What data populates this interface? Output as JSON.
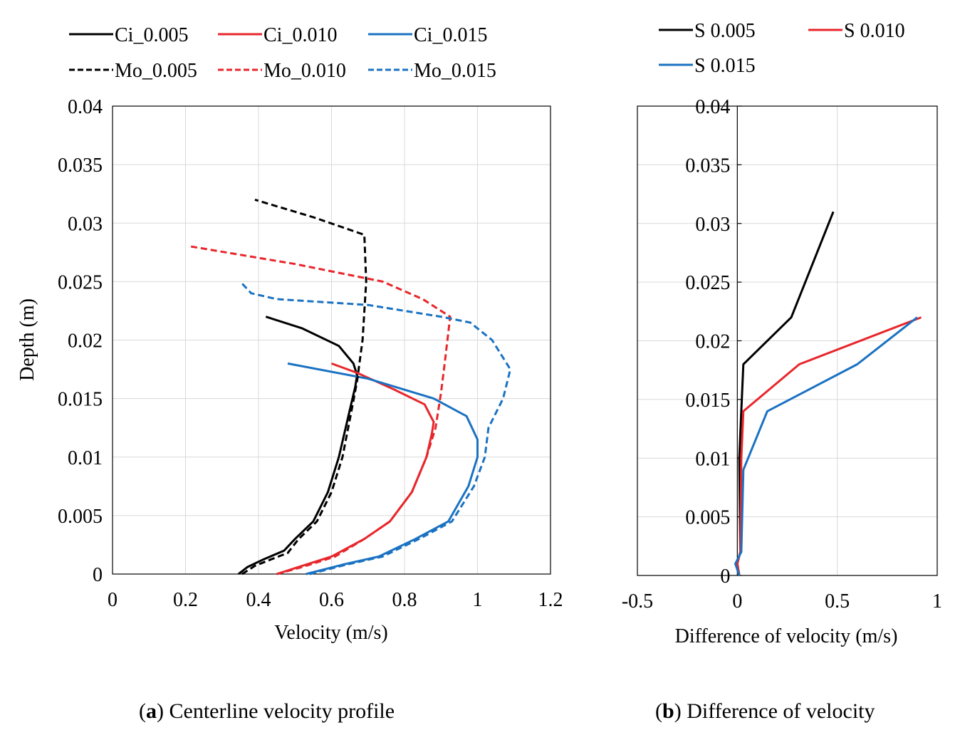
{
  "chart_data": [
    {
      "type": "line",
      "panel_label": "a",
      "caption": "Centerline velocity profile",
      "xlabel": "Velocity (m/s)",
      "ylabel": "Depth (m)",
      "xlim": [
        0,
        1.2
      ],
      "ylim": [
        0,
        0.04
      ],
      "xticks": [
        0,
        0.2,
        0.4,
        0.6,
        0.8,
        1,
        1.2
      ],
      "xtick_labels": [
        "0",
        "0.2",
        "0.4",
        "0.6",
        "0.8",
        "1",
        "1.2"
      ],
      "yticks": [
        0,
        0.005,
        0.01,
        0.015,
        0.02,
        0.025,
        0.03,
        0.035,
        0.04
      ],
      "ytick_labels": [
        "0",
        "0.005",
        "0.01",
        "0.015",
        "0.02",
        "0.025",
        "0.03",
        "0.035",
        "0.04"
      ],
      "grid": true,
      "legend_position": "top (above plot)",
      "series": [
        {
          "name": "Ci_0.005",
          "color": "#000000",
          "dash": "solid",
          "points": [
            [
              0.345,
              0
            ],
            [
              0.37,
              0.0006
            ],
            [
              0.41,
              0.0012
            ],
            [
              0.47,
              0.002
            ],
            [
              0.5,
              0.003
            ],
            [
              0.55,
              0.0045
            ],
            [
              0.59,
              0.007
            ],
            [
              0.62,
              0.01
            ],
            [
              0.65,
              0.014
            ],
            [
              0.665,
              0.016
            ],
            [
              0.67,
              0.017
            ],
            [
              0.66,
              0.018
            ],
            [
              0.62,
              0.0195
            ],
            [
              0.52,
              0.021
            ],
            [
              0.42,
              0.022
            ]
          ]
        },
        {
          "name": "Ci_0.010",
          "color": "#e8262b",
          "dash": "solid",
          "points": [
            [
              0.45,
              0
            ],
            [
              0.51,
              0.0006
            ],
            [
              0.6,
              0.0015
            ],
            [
              0.69,
              0.003
            ],
            [
              0.76,
              0.0045
            ],
            [
              0.82,
              0.007
            ],
            [
              0.86,
              0.01
            ],
            [
              0.875,
              0.012
            ],
            [
              0.88,
              0.013
            ],
            [
              0.855,
              0.0145
            ],
            [
              0.77,
              0.0158
            ],
            [
              0.67,
              0.0172
            ],
            [
              0.6,
              0.018
            ]
          ]
        },
        {
          "name": "Ci_0.015",
          "color": "#1a72c2",
          "dash": "solid",
          "points": [
            [
              0.53,
              0
            ],
            [
              0.63,
              0.0008
            ],
            [
              0.73,
              0.0015
            ],
            [
              0.83,
              0.003
            ],
            [
              0.92,
              0.0045
            ],
            [
              0.975,
              0.0075
            ],
            [
              1.0,
              0.01
            ],
            [
              1.0,
              0.0115
            ],
            [
              0.97,
              0.0135
            ],
            [
              0.88,
              0.015
            ],
            [
              0.7,
              0.0167
            ],
            [
              0.48,
              0.018
            ]
          ]
        },
        {
          "name": "Mo_0.005",
          "color": "#000000",
          "dash": "dashed",
          "points": [
            [
              0.355,
              0
            ],
            [
              0.39,
              0.0007
            ],
            [
              0.43,
              0.0012
            ],
            [
              0.48,
              0.0018
            ],
            [
              0.51,
              0.003
            ],
            [
              0.56,
              0.0045
            ],
            [
              0.6,
              0.007
            ],
            [
              0.63,
              0.01
            ],
            [
              0.655,
              0.014
            ],
            [
              0.67,
              0.0165
            ],
            [
              0.685,
              0.02
            ],
            [
              0.695,
              0.025
            ],
            [
              0.69,
              0.029
            ],
            [
              0.55,
              0.0305
            ],
            [
              0.39,
              0.032
            ]
          ]
        },
        {
          "name": "Mo_0.010",
          "color": "#e8262b",
          "dash": "dashed",
          "points": [
            [
              0.45,
              0
            ],
            [
              0.52,
              0.0006
            ],
            [
              0.61,
              0.0015
            ],
            [
              0.69,
              0.003
            ],
            [
              0.76,
              0.0045
            ],
            [
              0.82,
              0.007
            ],
            [
              0.86,
              0.01
            ],
            [
              0.885,
              0.0125
            ],
            [
              0.9,
              0.0155
            ],
            [
              0.91,
              0.018
            ],
            [
              0.925,
              0.022
            ],
            [
              0.85,
              0.0235
            ],
            [
              0.74,
              0.025
            ],
            [
              0.5,
              0.0265
            ],
            [
              0.215,
              0.028
            ]
          ]
        },
        {
          "name": "Mo_0.015",
          "color": "#1a72c2",
          "dash": "dashed",
          "points": [
            [
              0.54,
              0
            ],
            [
              0.64,
              0.0008
            ],
            [
              0.74,
              0.0015
            ],
            [
              0.84,
              0.003
            ],
            [
              0.93,
              0.0045
            ],
            [
              0.99,
              0.0075
            ],
            [
              1.02,
              0.01
            ],
            [
              1.03,
              0.0125
            ],
            [
              1.07,
              0.015
            ],
            [
              1.09,
              0.0175
            ],
            [
              1.04,
              0.02
            ],
            [
              0.98,
              0.0215
            ],
            [
              0.9,
              0.022
            ],
            [
              0.7,
              0.023
            ],
            [
              0.45,
              0.0235
            ],
            [
              0.38,
              0.024
            ],
            [
              0.35,
              0.025
            ]
          ]
        }
      ]
    },
    {
      "type": "line",
      "panel_label": "b",
      "caption": "Difference of velocity",
      "xlabel": "Difference of velocity (m/s)",
      "ylabel": "",
      "xlim": [
        -0.5,
        1
      ],
      "ylim": [
        0,
        0.04
      ],
      "xticks": [
        -0.5,
        0,
        0.5,
        1
      ],
      "xtick_labels": [
        "-0.5",
        "0",
        "0.5",
        "1"
      ],
      "yticks": [
        0,
        0.005,
        0.01,
        0.015,
        0.02,
        0.025,
        0.03,
        0.035,
        0.04
      ],
      "ytick_labels": [
        "0",
        "0.005",
        "0.01",
        "0.015",
        "0.02",
        "0.025",
        "0.03",
        "0.035",
        "0.04"
      ],
      "grid": true,
      "legend_position": "top (above plot)",
      "series": [
        {
          "name": "S 0.005",
          "color": "#000000",
          "dash": "solid",
          "points": [
            [
              0.01,
              0
            ],
            [
              0.0,
              0.001
            ],
            [
              0.015,
              0.002
            ],
            [
              0.01,
              0.01
            ],
            [
              0.02,
              0.014
            ],
            [
              0.03,
              0.018
            ],
            [
              0.27,
              0.022
            ],
            [
              0.48,
              0.031
            ]
          ]
        },
        {
          "name": "S 0.010",
          "color": "#e8262b",
          "dash": "solid",
          "points": [
            [
              0.01,
              0
            ],
            [
              0.0,
              0.001
            ],
            [
              0.015,
              0.002
            ],
            [
              0.02,
              0.01
            ],
            [
              0.03,
              0.014
            ],
            [
              0.31,
              0.018
            ],
            [
              0.92,
              0.022
            ]
          ]
        },
        {
          "name": "S 0.015",
          "color": "#1a72c2",
          "dash": "solid",
          "points": [
            [
              0.01,
              0
            ],
            [
              -0.01,
              0.001
            ],
            [
              0.02,
              0.002
            ],
            [
              0.03,
              0.009
            ],
            [
              0.15,
              0.014
            ],
            [
              0.6,
              0.018
            ],
            [
              0.9,
              0.022
            ]
          ]
        }
      ]
    }
  ]
}
